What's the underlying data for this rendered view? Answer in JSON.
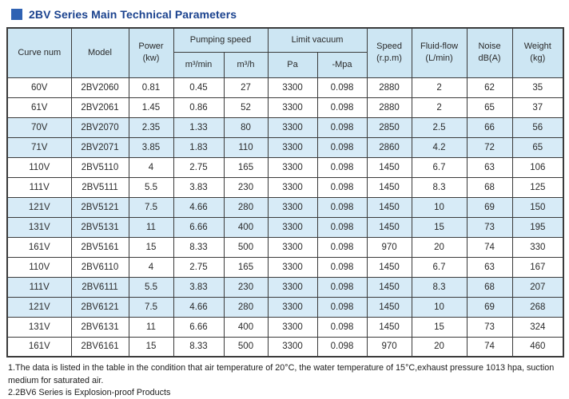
{
  "page": {
    "title": "2BV Series Main Technical Parameters"
  },
  "table": {
    "headers": {
      "curve_num": "Curve num",
      "model": "Model",
      "power_line1": "Power",
      "power_line2": "(kw)",
      "pumping_speed": "Pumping speed",
      "pumping_unit_min": "m³/min",
      "pumping_unit_h": "m³/h",
      "limit_vacuum": "Limit vacuum",
      "vacuum_pa": "Pa",
      "vacuum_mpa": "-Mpa",
      "speed_line1": "Speed",
      "speed_line2": "(r.p.m)",
      "fluid_line1": "Fluid-flow",
      "fluid_line2": "(L/min)",
      "noise_line1": "Noise",
      "noise_line2": "dB(A)",
      "weight_line1": "Weight",
      "weight_line2": "(kg)"
    },
    "rows": [
      [
        "60V",
        "2BV2060",
        "0.81",
        "0.45",
        "27",
        "3300",
        "0.098",
        "2880",
        "2",
        "62",
        "35"
      ],
      [
        "61V",
        "2BV2061",
        "1.45",
        "0.86",
        "52",
        "3300",
        "0.098",
        "2880",
        "2",
        "65",
        "37"
      ],
      [
        "70V",
        "2BV2070",
        "2.35",
        "1.33",
        "80",
        "3300",
        "0.098",
        "2850",
        "2.5",
        "66",
        "56"
      ],
      [
        "71V",
        "2BV2071",
        "3.85",
        "1.83",
        "110",
        "3300",
        "0.098",
        "2860",
        "4.2",
        "72",
        "65"
      ],
      [
        "110V",
        "2BV5110",
        "4",
        "2.75",
        "165",
        "3300",
        "0.098",
        "1450",
        "6.7",
        "63",
        "106"
      ],
      [
        "111V",
        "2BV5111",
        "5.5",
        "3.83",
        "230",
        "3300",
        "0.098",
        "1450",
        "8.3",
        "68",
        "125"
      ],
      [
        "121V",
        "2BV5121",
        "7.5",
        "4.66",
        "280",
        "3300",
        "0.098",
        "1450",
        "10",
        "69",
        "150"
      ],
      [
        "131V",
        "2BV5131",
        "11",
        "6.66",
        "400",
        "3300",
        "0.098",
        "1450",
        "15",
        "73",
        "195"
      ],
      [
        "161V",
        "2BV5161",
        "15",
        "8.33",
        "500",
        "3300",
        "0.098",
        "970",
        "20",
        "74",
        "330"
      ],
      [
        "110V",
        "2BV6110",
        "4",
        "2.75",
        "165",
        "3300",
        "0.098",
        "1450",
        "6.7",
        "63",
        "167"
      ],
      [
        "111V",
        "2BV6111",
        "5.5",
        "3.83",
        "230",
        "3300",
        "0.098",
        "1450",
        "8.3",
        "68",
        "207"
      ],
      [
        "121V",
        "2BV6121",
        "7.5",
        "4.66",
        "280",
        "3300",
        "0.098",
        "1450",
        "10",
        "69",
        "268"
      ],
      [
        "131V",
        "2BV6131",
        "11",
        "6.66",
        "400",
        "3300",
        "0.098",
        "1450",
        "15",
        "73",
        "324"
      ],
      [
        "161V",
        "2BV6161",
        "15",
        "8.33",
        "500",
        "3300",
        "0.098",
        "970",
        "20",
        "74",
        "460"
      ]
    ]
  },
  "notes": {
    "note1": "1.The data is listed in the table in the condition that air temperature of 20°C, the water temperature of 15°C,exhaust pressure 1013 hpa, suction medium for saturated air.",
    "note2": "2.2BV6 Series is Explosion-proof Products"
  },
  "colors": {
    "title_text": "#1a428e",
    "title_square": "#2f62b3",
    "header_bg": "#cde6f3",
    "stripe_bg": "#d7ebf7",
    "border": "#3b3b3b"
  }
}
